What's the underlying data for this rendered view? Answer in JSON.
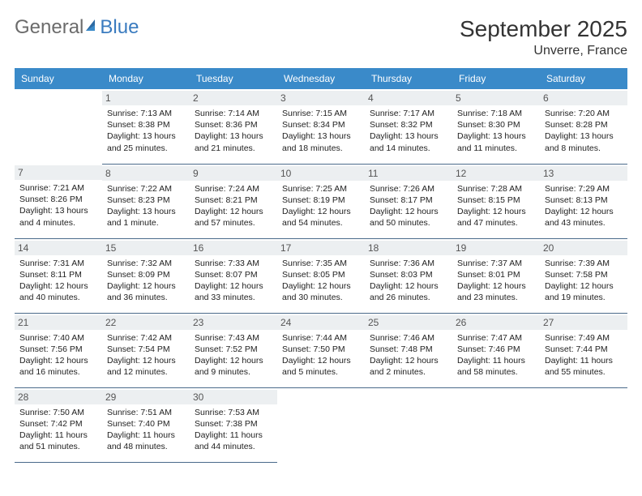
{
  "logo": {
    "text1": "General",
    "text2": "Blue"
  },
  "title": "September 2025",
  "location": "Unverre, France",
  "colors": {
    "header_bg": "#3a8ac9",
    "header_text": "#ffffff",
    "daynum_bg": "#eceff1",
    "daynum_text": "#555555",
    "cell_border": "#4a6a8a",
    "body_text": "#222222",
    "title_text": "#333333",
    "logo_gray": "#6b6b6b",
    "logo_blue": "#3a7bbf"
  },
  "weekdays": [
    "Sunday",
    "Monday",
    "Tuesday",
    "Wednesday",
    "Thursday",
    "Friday",
    "Saturday"
  ],
  "leading_blanks": 1,
  "days": [
    {
      "n": "1",
      "sunrise": "Sunrise: 7:13 AM",
      "sunset": "Sunset: 8:38 PM",
      "daylight": "Daylight: 13 hours and 25 minutes."
    },
    {
      "n": "2",
      "sunrise": "Sunrise: 7:14 AM",
      "sunset": "Sunset: 8:36 PM",
      "daylight": "Daylight: 13 hours and 21 minutes."
    },
    {
      "n": "3",
      "sunrise": "Sunrise: 7:15 AM",
      "sunset": "Sunset: 8:34 PM",
      "daylight": "Daylight: 13 hours and 18 minutes."
    },
    {
      "n": "4",
      "sunrise": "Sunrise: 7:17 AM",
      "sunset": "Sunset: 8:32 PM",
      "daylight": "Daylight: 13 hours and 14 minutes."
    },
    {
      "n": "5",
      "sunrise": "Sunrise: 7:18 AM",
      "sunset": "Sunset: 8:30 PM",
      "daylight": "Daylight: 13 hours and 11 minutes."
    },
    {
      "n": "6",
      "sunrise": "Sunrise: 7:20 AM",
      "sunset": "Sunset: 8:28 PM",
      "daylight": "Daylight: 13 hours and 8 minutes."
    },
    {
      "n": "7",
      "sunrise": "Sunrise: 7:21 AM",
      "sunset": "Sunset: 8:26 PM",
      "daylight": "Daylight: 13 hours and 4 minutes."
    },
    {
      "n": "8",
      "sunrise": "Sunrise: 7:22 AM",
      "sunset": "Sunset: 8:23 PM",
      "daylight": "Daylight: 13 hours and 1 minute."
    },
    {
      "n": "9",
      "sunrise": "Sunrise: 7:24 AM",
      "sunset": "Sunset: 8:21 PM",
      "daylight": "Daylight: 12 hours and 57 minutes."
    },
    {
      "n": "10",
      "sunrise": "Sunrise: 7:25 AM",
      "sunset": "Sunset: 8:19 PM",
      "daylight": "Daylight: 12 hours and 54 minutes."
    },
    {
      "n": "11",
      "sunrise": "Sunrise: 7:26 AM",
      "sunset": "Sunset: 8:17 PM",
      "daylight": "Daylight: 12 hours and 50 minutes."
    },
    {
      "n": "12",
      "sunrise": "Sunrise: 7:28 AM",
      "sunset": "Sunset: 8:15 PM",
      "daylight": "Daylight: 12 hours and 47 minutes."
    },
    {
      "n": "13",
      "sunrise": "Sunrise: 7:29 AM",
      "sunset": "Sunset: 8:13 PM",
      "daylight": "Daylight: 12 hours and 43 minutes."
    },
    {
      "n": "14",
      "sunrise": "Sunrise: 7:31 AM",
      "sunset": "Sunset: 8:11 PM",
      "daylight": "Daylight: 12 hours and 40 minutes."
    },
    {
      "n": "15",
      "sunrise": "Sunrise: 7:32 AM",
      "sunset": "Sunset: 8:09 PM",
      "daylight": "Daylight: 12 hours and 36 minutes."
    },
    {
      "n": "16",
      "sunrise": "Sunrise: 7:33 AM",
      "sunset": "Sunset: 8:07 PM",
      "daylight": "Daylight: 12 hours and 33 minutes."
    },
    {
      "n": "17",
      "sunrise": "Sunrise: 7:35 AM",
      "sunset": "Sunset: 8:05 PM",
      "daylight": "Daylight: 12 hours and 30 minutes."
    },
    {
      "n": "18",
      "sunrise": "Sunrise: 7:36 AM",
      "sunset": "Sunset: 8:03 PM",
      "daylight": "Daylight: 12 hours and 26 minutes."
    },
    {
      "n": "19",
      "sunrise": "Sunrise: 7:37 AM",
      "sunset": "Sunset: 8:01 PM",
      "daylight": "Daylight: 12 hours and 23 minutes."
    },
    {
      "n": "20",
      "sunrise": "Sunrise: 7:39 AM",
      "sunset": "Sunset: 7:58 PM",
      "daylight": "Daylight: 12 hours and 19 minutes."
    },
    {
      "n": "21",
      "sunrise": "Sunrise: 7:40 AM",
      "sunset": "Sunset: 7:56 PM",
      "daylight": "Daylight: 12 hours and 16 minutes."
    },
    {
      "n": "22",
      "sunrise": "Sunrise: 7:42 AM",
      "sunset": "Sunset: 7:54 PM",
      "daylight": "Daylight: 12 hours and 12 minutes."
    },
    {
      "n": "23",
      "sunrise": "Sunrise: 7:43 AM",
      "sunset": "Sunset: 7:52 PM",
      "daylight": "Daylight: 12 hours and 9 minutes."
    },
    {
      "n": "24",
      "sunrise": "Sunrise: 7:44 AM",
      "sunset": "Sunset: 7:50 PM",
      "daylight": "Daylight: 12 hours and 5 minutes."
    },
    {
      "n": "25",
      "sunrise": "Sunrise: 7:46 AM",
      "sunset": "Sunset: 7:48 PM",
      "daylight": "Daylight: 12 hours and 2 minutes."
    },
    {
      "n": "26",
      "sunrise": "Sunrise: 7:47 AM",
      "sunset": "Sunset: 7:46 PM",
      "daylight": "Daylight: 11 hours and 58 minutes."
    },
    {
      "n": "27",
      "sunrise": "Sunrise: 7:49 AM",
      "sunset": "Sunset: 7:44 PM",
      "daylight": "Daylight: 11 hours and 55 minutes."
    },
    {
      "n": "28",
      "sunrise": "Sunrise: 7:50 AM",
      "sunset": "Sunset: 7:42 PM",
      "daylight": "Daylight: 11 hours and 51 minutes."
    },
    {
      "n": "29",
      "sunrise": "Sunrise: 7:51 AM",
      "sunset": "Sunset: 7:40 PM",
      "daylight": "Daylight: 11 hours and 48 minutes."
    },
    {
      "n": "30",
      "sunrise": "Sunrise: 7:53 AM",
      "sunset": "Sunset: 7:38 PM",
      "daylight": "Daylight: 11 hours and 44 minutes."
    }
  ]
}
